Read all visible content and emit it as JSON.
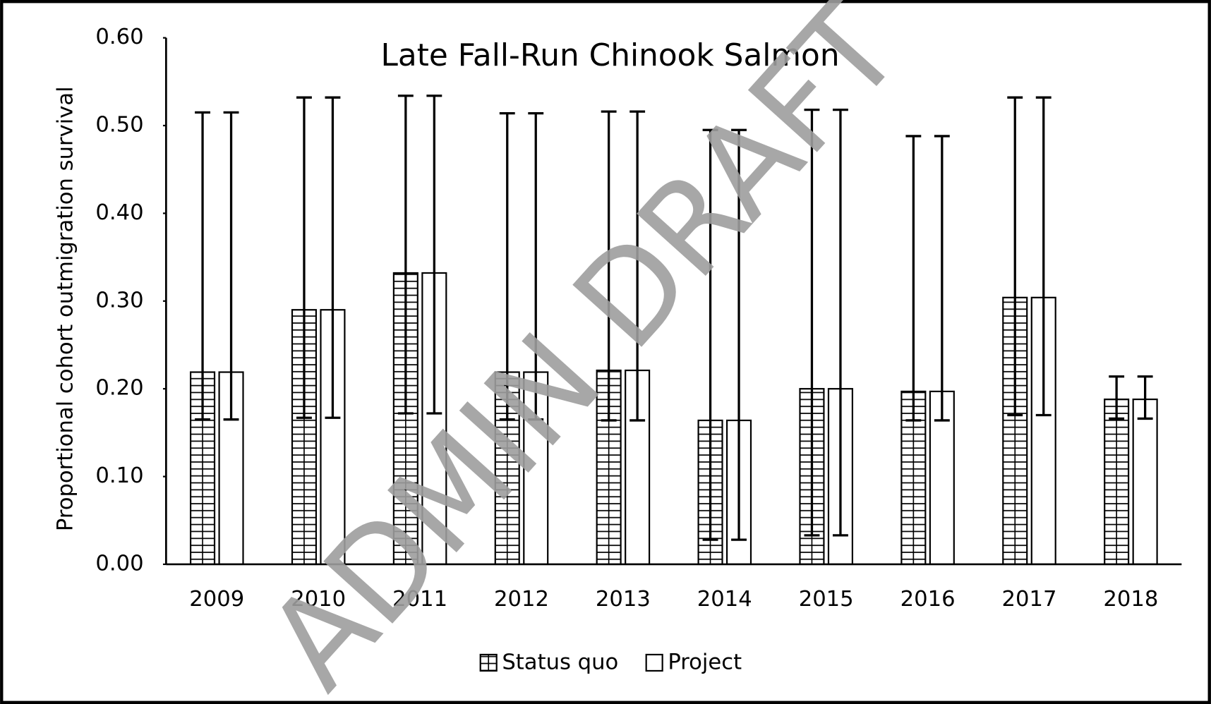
{
  "chart_data": {
    "type": "bar",
    "title": "Late Fall-Run Chinook Salmon",
    "y_label": "Proportional cohort outmigration survival",
    "watermark": "ADMIN DRAFT",
    "categories": [
      "2009",
      "2010",
      "2011",
      "2012",
      "2013",
      "2014",
      "2015",
      "2016",
      "2017",
      "2018"
    ],
    "series": [
      {
        "name": "Status quo",
        "color": "#000000",
        "pattern": "horizontal-lines",
        "values": [
          0.219,
          0.29,
          0.332,
          0.219,
          0.221,
          0.164,
          0.2,
          0.197,
          0.304,
          0.188
        ],
        "lower": [
          0.165,
          0.167,
          0.172,
          0.165,
          0.164,
          0.028,
          0.033,
          0.164,
          0.17,
          0.166
        ],
        "upper": [
          0.515,
          0.532,
          0.534,
          0.514,
          0.516,
          0.495,
          0.518,
          0.488,
          0.532,
          0.214
        ]
      },
      {
        "name": "Project",
        "color": "#000000",
        "pattern": "none",
        "values": [
          0.219,
          0.29,
          0.332,
          0.219,
          0.221,
          0.164,
          0.2,
          0.197,
          0.304,
          0.188
        ],
        "lower": [
          0.165,
          0.167,
          0.172,
          0.165,
          0.164,
          0.028,
          0.033,
          0.164,
          0.17,
          0.166
        ],
        "upper": [
          0.515,
          0.532,
          0.534,
          0.514,
          0.516,
          0.495,
          0.518,
          0.488,
          0.532,
          0.214
        ]
      }
    ],
    "ylim": [
      0,
      0.6
    ],
    "yticks": [
      {
        "value": 0,
        "label": "0.00"
      },
      {
        "value": 0.1,
        "label": "0.10"
      },
      {
        "value": 0.2,
        "label": "0.20"
      },
      {
        "value": 0.3,
        "label": "0.30"
      },
      {
        "value": 0.4,
        "label": "0.40"
      },
      {
        "value": 0.5,
        "label": "0.50"
      },
      {
        "value": 0.6,
        "label": "0.60"
      }
    ],
    "legend": "bottom",
    "grid": false
  }
}
